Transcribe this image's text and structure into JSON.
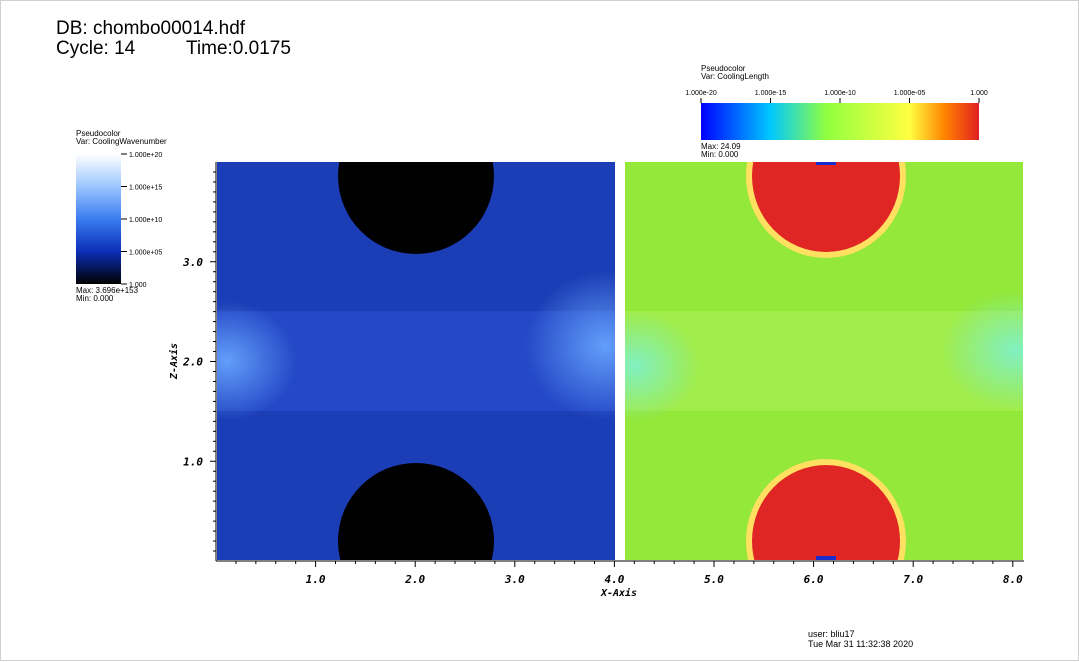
{
  "header": {
    "db": "DB: chombo00014.hdf",
    "cycle": "Cycle: 14",
    "time": "Time:0.0175"
  },
  "legend_left": {
    "type": "Pseudocolor",
    "var": "Var: CoolingWavenumber",
    "ticks": [
      "1.000e+20",
      "1.000e+15",
      "1.000e+10",
      "1.000e+05",
      "1.000"
    ],
    "max": "Max: 3.696e+153",
    "min": "Min: 0.000",
    "colors": [
      "#ffffff",
      "#9cc6ff",
      "#3a7cf0",
      "#0c2fb8",
      "#000000"
    ]
  },
  "legend_right": {
    "type": "Pseudocolor",
    "var": "Var: CoolingLength",
    "ticks": [
      "1.000e-20",
      "1.000e-15",
      "1.000e-10",
      "1.000e-05",
      "1.000"
    ],
    "max": "Max: 24.09",
    "min": "Min: 0.000",
    "colors": [
      "#0000ff",
      "#00c8ff",
      "#90ff40",
      "#ffff40",
      "#ff8000",
      "#e02020"
    ]
  },
  "plot": {
    "x_axis_title": "X-Axis",
    "y_axis_title": "Z-Axis",
    "x_ticks": [
      "1.0",
      "2.0",
      "3.0",
      "4.0",
      "5.0",
      "6.0",
      "7.0",
      "8.0"
    ],
    "y_ticks": [
      "1.0",
      "2.0",
      "3.0"
    ],
    "left_panel_color": "#1e3fbe",
    "right_panel_color": "#93e83a",
    "left_blob_color": "#000000",
    "right_blob_color": "#e02525"
  },
  "footer": {
    "user": "user: bliu17",
    "date": "Tue Mar 31 11:32:38 2020"
  }
}
